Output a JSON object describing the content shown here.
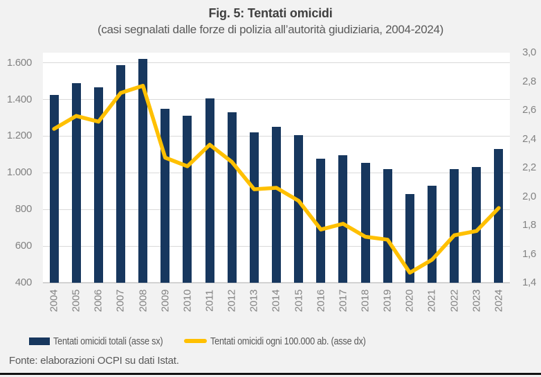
{
  "figure": {
    "title": "Fig. 5: Tentati omicidi",
    "subtitle": "(casi segnalati dalle forze di polizia all’autorità giudiziaria, 2004-2024)",
    "source": "Fonte: elaborazioni OCPI su dati Istat."
  },
  "colors": {
    "background": "#F2F2F2",
    "plot_background": "#FFFFFF",
    "bar": "#17375E",
    "line": "#FFC000",
    "gridline": "#D9D9D9",
    "axis_text": "#828282",
    "title_text": "#404040",
    "secondary_text": "#595959",
    "bottom_border": "#121212"
  },
  "legend": {
    "items": [
      {
        "label": "Tentati omicidi totali (asse sx)"
      },
      {
        "label": "Tentati omicidi ogni 100.000 ab. (asse dx)"
      }
    ]
  },
  "chart_data": {
    "type": "combo-bar-line",
    "title": "Fig. 5: Tentati omicidi",
    "subtitle": "(casi segnalati dalle forze di polizia all’autorità giudiziaria, 2004-2024)",
    "categories": [
      "2004",
      "2005",
      "2006",
      "2007",
      "2008",
      "2009",
      "2010",
      "2011",
      "2012",
      "2013",
      "2014",
      "2015",
      "2016",
      "2017",
      "2018",
      "2019",
      "2020",
      "2021",
      "2022",
      "2023",
      "2024"
    ],
    "series": [
      {
        "name": "Tentati omicidi totali (asse sx)",
        "type": "bar",
        "axis": "left",
        "color": "#17375E",
        "values": [
          1425,
          1487,
          1467,
          1588,
          1622,
          1348,
          1311,
          1404,
          1330,
          1222,
          1252,
          1204,
          1078,
          1097,
          1055,
          1020,
          884,
          931,
          1020,
          1032,
          1130
        ]
      },
      {
        "name": "Tentati omicidi ogni 100.000 ab. (asse dx)",
        "type": "line",
        "axis": "right",
        "color": "#FFC000",
        "values": [
          2.47,
          2.56,
          2.52,
          2.72,
          2.77,
          2.27,
          2.21,
          2.36,
          2.24,
          2.05,
          2.06,
          1.97,
          1.77,
          1.81,
          1.72,
          1.7,
          1.47,
          1.56,
          1.73,
          1.76,
          1.92
        ]
      }
    ],
    "left_axis": {
      "min": 400,
      "tick_max": 1600,
      "plot_max": 1655,
      "ticks": [
        400,
        600,
        800,
        1000,
        1200,
        1400,
        1600
      ],
      "tick_labels": [
        "400",
        "600",
        "800",
        "1.000",
        "1.200",
        "1.400",
        "1.600"
      ]
    },
    "right_axis": {
      "min": 1.4,
      "max": 3.0,
      "ticks": [
        1.4,
        1.6,
        1.8,
        2.0,
        2.2,
        2.4,
        2.6,
        2.8,
        3.0
      ],
      "tick_labels": [
        "1,4",
        "1,6",
        "1,8",
        "2,0",
        "2,2",
        "2,4",
        "2,6",
        "2,8",
        "3,0"
      ]
    },
    "grid": true,
    "legend_position": "bottom",
    "x_tick_rotation": -90
  }
}
